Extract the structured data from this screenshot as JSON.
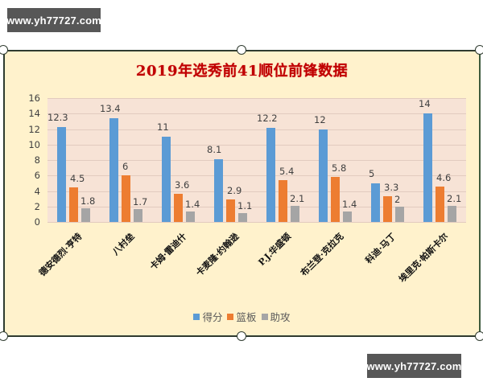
{
  "watermark": {
    "top": "www.yh77727.com",
    "bottom": "www.yh77727.com"
  },
  "colors": {
    "background": "#fff2cc",
    "plot_background": "#f7e3d6",
    "title": "#c00000",
    "points": "#5b9bd5",
    "rebounds": "#ed7d31",
    "assists": "#a5a5a5"
  },
  "chart_data": {
    "type": "bar",
    "title": "2019年选秀前41顺位前锋数据",
    "xlabel": "",
    "ylabel": "",
    "ylim": [
      0,
      16
    ],
    "yticks": [
      0,
      2,
      4,
      6,
      8,
      10,
      12,
      14,
      16
    ],
    "grid": true,
    "legend_position": "bottom",
    "categories": [
      "德安德烈·亨特",
      "八村垒",
      "卡姆·雷迪什",
      "卡麦隆·约翰逊",
      "P.J.华盛顿",
      "布兰登·克拉克",
      "科迪·马丁",
      "埃里克·帕斯卡尔"
    ],
    "series": [
      {
        "name": "得分",
        "values": [
          12.3,
          13.4,
          11,
          8.1,
          12.2,
          12,
          5,
          14
        ]
      },
      {
        "name": "篮板",
        "values": [
          4.5,
          6,
          3.6,
          2.9,
          5.4,
          5.8,
          3.3,
          4.6
        ]
      },
      {
        "name": "助攻",
        "values": [
          1.8,
          1.7,
          1.4,
          1.1,
          2.1,
          1.4,
          2,
          2.1
        ]
      }
    ]
  }
}
